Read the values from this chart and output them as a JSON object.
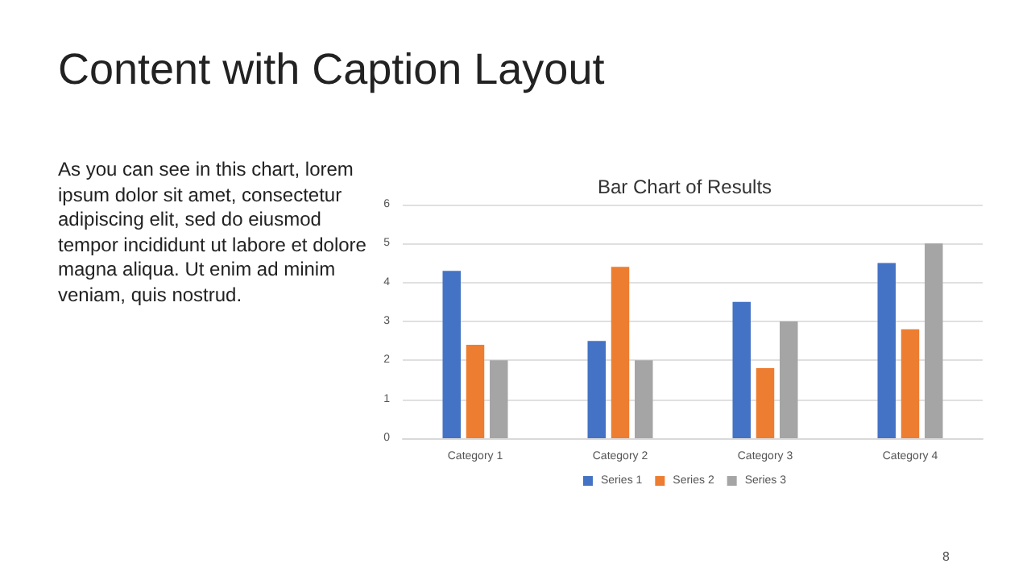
{
  "chart_data": {
    "type": "bar",
    "title": "Bar Chart of Results",
    "annotations": [
      "Content with Caption Layout",
      "As you can see in this chart, lorem ipsum dolor sit amet, consectetur adipiscing elit, sed do eiusmod tempor incididunt ut labore et dolore magna aliqua. Ut enim ad minim veniam, quis nostrud.",
      "8"
    ],
    "categories": [
      "Category 1",
      "Category 2",
      "Category 3",
      "Category 4"
    ],
    "series": [
      {
        "name": "Series 1",
        "color": "#4472c4",
        "values": [
          4.3,
          2.5,
          3.5,
          4.5
        ]
      },
      {
        "name": "Series 2",
        "color": "#ed7d31",
        "values": [
          2.4,
          4.4,
          1.8,
          2.8
        ]
      },
      {
        "name": "Series 3",
        "color": "#a5a5a5",
        "values": [
          2,
          2,
          3,
          5
        ]
      }
    ],
    "ylim": [
      0,
      6
    ],
    "yticks": [
      0,
      1,
      2,
      3,
      4,
      5,
      6
    ],
    "grid": "y",
    "legend": "bottom"
  }
}
